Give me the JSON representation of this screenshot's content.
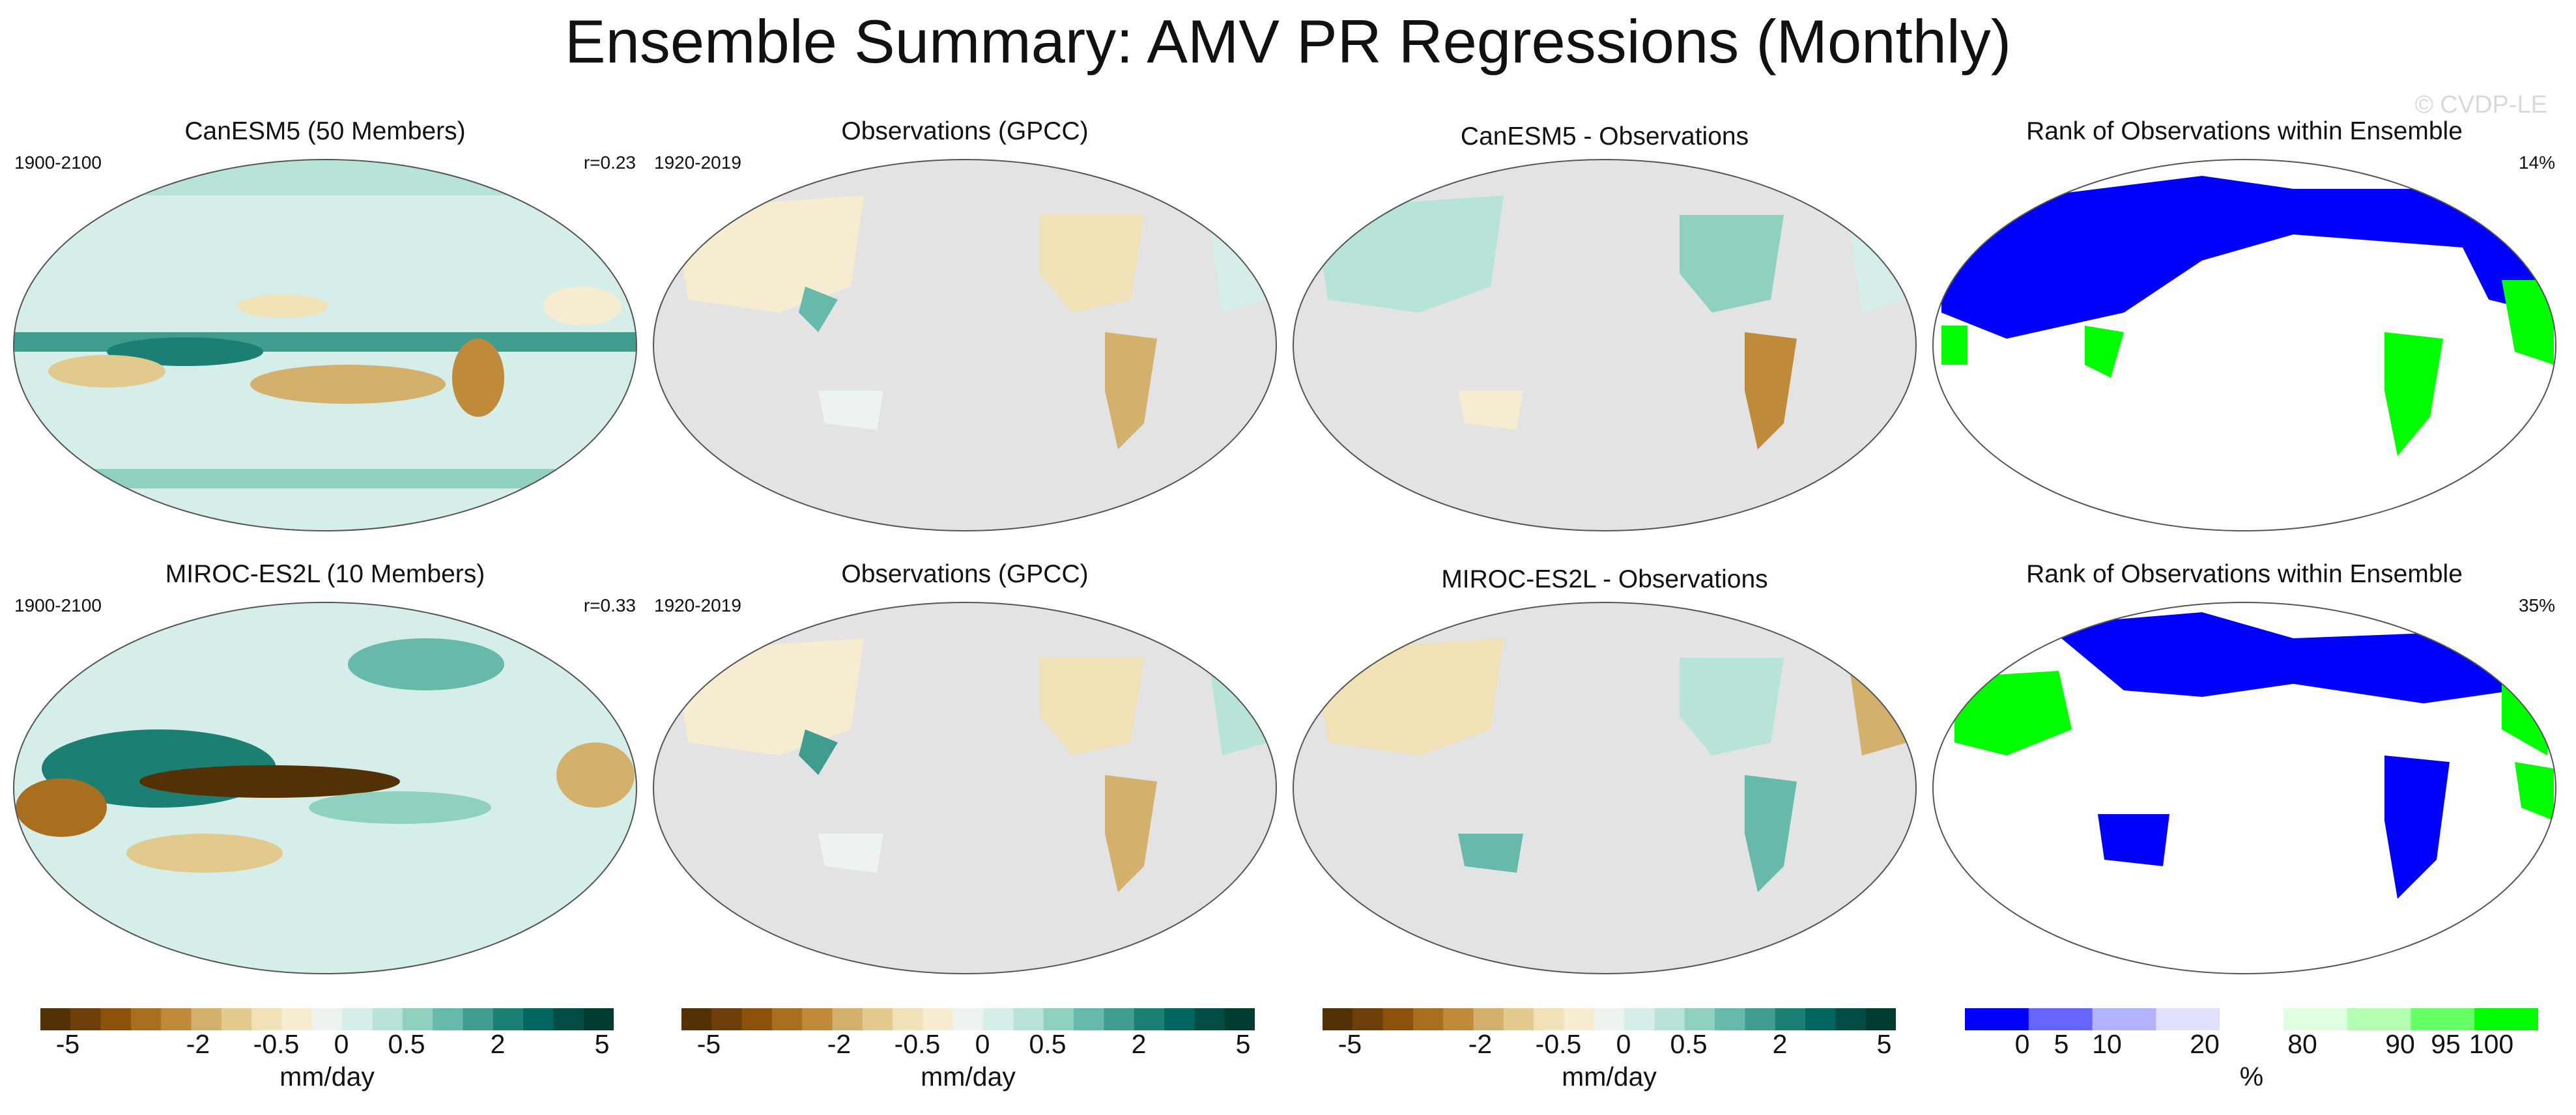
{
  "title": "Ensemble Summary: AMV PR Regressions (Monthly)",
  "watermark": "© CVDP-LE",
  "colors": {
    "ocean_gray": "#e3e3e3",
    "land_outline": "#555555",
    "rank_low": "#0000ff",
    "rank_high": "#00ff00",
    "diverging": [
      "#543005",
      "#6f3f0b",
      "#8c510a",
      "#a8701e",
      "#bf8a3a",
      "#d3b06c",
      "#e2c98d",
      "#f0e2b6",
      "#f6ecd1",
      "#edf4f0",
      "#d5eee9",
      "#b7e3d9",
      "#8fd0c1",
      "#67b9aa",
      "#3f9c8f",
      "#1c7f73",
      "#01665e",
      "#014d44",
      "#003c30"
    ],
    "rank_scale": [
      "#0000ff",
      "#6666ff",
      "#b2b2ff",
      "#e0e0ff",
      "#ffffff",
      "#e0ffe0",
      "#b2ffb2",
      "#66ff66",
      "#00ff00"
    ]
  },
  "rows": [
    {
      "model_panel": {
        "title": "CanESM5 (50 Members)",
        "left_label": "1900-2100",
        "right_label": "r=0.23"
      },
      "obs_panel": {
        "title": "Observations (GPCC)",
        "left_label": "1920-2019",
        "right_label": ""
      },
      "diff_panel": {
        "title": "CanESM5 - Observations",
        "left_label": "",
        "right_label": ""
      },
      "rank_panel": {
        "title": "Rank of Observations within Ensemble",
        "left_label": "",
        "right_label": "14%"
      }
    },
    {
      "model_panel": {
        "title": "MIROC-ES2L (10 Members)",
        "left_label": "1900-2100",
        "right_label": "r=0.33"
      },
      "obs_panel": {
        "title": "Observations (GPCC)",
        "left_label": "1920-2019",
        "right_label": ""
      },
      "diff_panel": {
        "title": "MIROC-ES2L - Observations",
        "left_label": "",
        "right_label": ""
      },
      "rank_panel": {
        "title": "Rank of Observations within Ensemble",
        "left_label": "",
        "right_label": "35%"
      }
    }
  ],
  "colorbars": [
    {
      "unit": "mm/day",
      "ticks": [
        "-5",
        "-2",
        "-0.5",
        "0",
        "0.5",
        "2",
        "5"
      ]
    },
    {
      "unit": "mm/day",
      "ticks": [
        "-5",
        "-2",
        "-0.5",
        "0",
        "0.5",
        "2",
        "5"
      ]
    },
    {
      "unit": "mm/day",
      "ticks": [
        "-5",
        "-2",
        "-0.5",
        "0",
        "0.5",
        "2",
        "5"
      ]
    },
    {
      "unit": "%",
      "ticks": [
        "0",
        "5",
        "10",
        "20",
        "80",
        "90",
        "95",
        "100"
      ]
    }
  ]
}
